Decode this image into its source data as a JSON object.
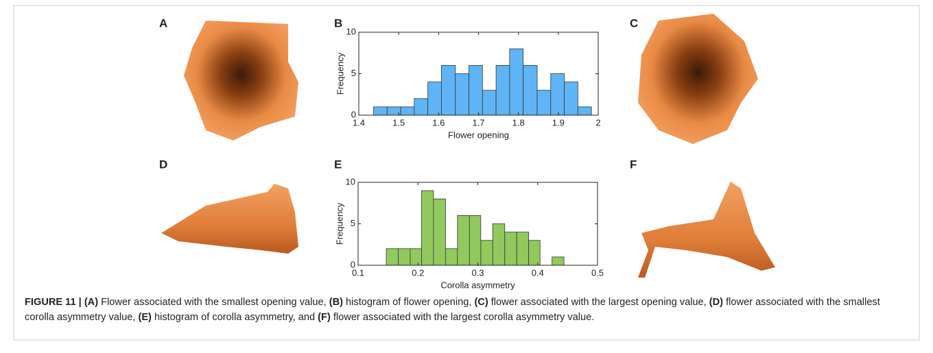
{
  "panels": [
    "A",
    "C",
    "D",
    "F"
  ],
  "chart_data": [
    {
      "type": "histogram",
      "panel": "B",
      "xlabel": "Flower opening",
      "ylabel": "Frequency",
      "color": "#5fb4f6",
      "bins": [
        1.437,
        1.471,
        1.505,
        1.539,
        1.573,
        1.607,
        1.642,
        1.676,
        1.71,
        1.744,
        1.778,
        1.812,
        1.847,
        1.881,
        1.915,
        1.949,
        1.983
      ],
      "values": [
        1,
        1,
        1,
        2,
        4,
        6,
        5,
        6,
        3,
        6,
        8,
        6,
        3,
        5,
        4,
        1
      ],
      "xlim": [
        1.4,
        2
      ],
      "xticks": [
        1.4,
        1.5,
        1.6,
        1.7,
        1.8,
        1.9,
        2
      ],
      "ylim": [
        0,
        10
      ],
      "yticks": [
        0,
        5,
        10
      ]
    },
    {
      "type": "histogram",
      "panel": "E",
      "xlabel": "Corolla asymmetry",
      "ylabel": "Frequency",
      "color": "#92c95f",
      "bins": [
        0.147,
        0.167,
        0.187,
        0.206,
        0.226,
        0.246,
        0.266,
        0.286,
        0.305,
        0.325,
        0.345,
        0.365,
        0.385,
        0.404,
        0.424,
        0.444
      ],
      "values": [
        2,
        2,
        2,
        9,
        8,
        2,
        6,
        6,
        3,
        5,
        4,
        4,
        3,
        0,
        1
      ],
      "xlim": [
        0.1,
        0.5
      ],
      "xticks": [
        0.1,
        0.2,
        0.3,
        0.4,
        0.5
      ],
      "ylim": [
        0,
        10
      ],
      "yticks": [
        0,
        5,
        10
      ]
    }
  ],
  "caption": [
    {
      "text": "FIGURE 11 | ",
      "bold": true
    },
    {
      "text": "(A)",
      "bold": true
    },
    {
      "text": " Flower associated with the smallest opening value, ",
      "bold": false
    },
    {
      "text": "(B)",
      "bold": true
    },
    {
      "text": " histogram of flower opening, ",
      "bold": false
    },
    {
      "text": "(C)",
      "bold": true
    },
    {
      "text": " flower associated with the largest opening value, ",
      "bold": false
    },
    {
      "text": "(D)",
      "bold": true
    },
    {
      "text": " flower associated with the smallest corolla asymmetry value, ",
      "bold": false
    },
    {
      "text": "(E)",
      "bold": true
    },
    {
      "text": " histogram of corolla asymmetry, and ",
      "bold": false
    },
    {
      "text": "(F)",
      "bold": true
    },
    {
      "text": " flower associated with the largest corolla asymmetry value.",
      "bold": false
    }
  ]
}
